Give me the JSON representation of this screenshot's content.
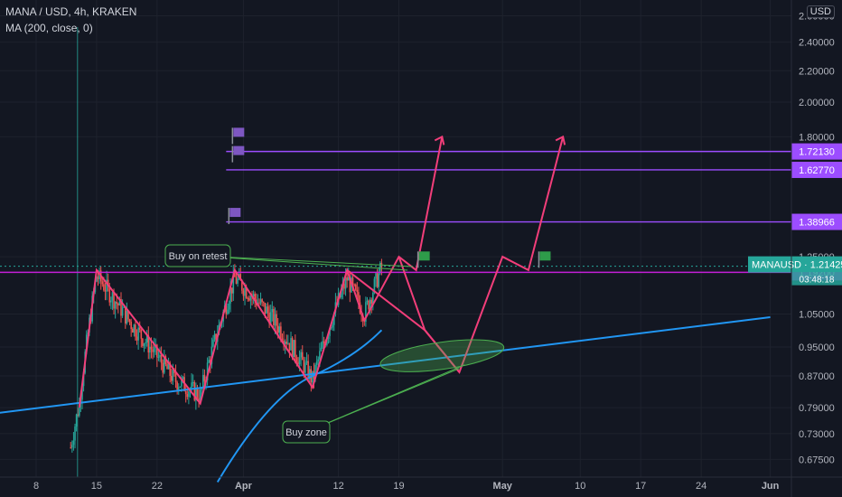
{
  "header": {
    "title": "MANA / USD, 4h, KRAKEN",
    "indicator": "MA (200, close, 0)",
    "currency": "USD"
  },
  "colors": {
    "background": "#131722",
    "grid": "#1e222d",
    "up_candle": "#26a69a",
    "down_candle": "#ef5350",
    "pattern_line": "#f23e7a",
    "support_line": "#2196f3",
    "target_line": "#9c4dff",
    "buy_line": "#c21fd6",
    "current_price": "#26a69a",
    "flag_purple": "#7e57c2",
    "flag_green": "#2e9c4a"
  },
  "chart_data": {
    "type": "candlestick",
    "title": "MANA / USD, 4h, KRAKEN",
    "y_scale": "log",
    "ylim": [
      0.66,
      2.6
    ],
    "y_ticks": [
      "2.60000",
      "2.40000",
      "2.20000",
      "2.00000",
      "1.80000",
      "1.25000",
      "1.05000",
      "0.95000",
      "0.87000",
      "0.79000",
      "0.73000",
      "0.67500"
    ],
    "y_tick_values": [
      2.6,
      2.4,
      2.2,
      2.0,
      1.8,
      1.25,
      1.05,
      0.95,
      0.87,
      0.79,
      0.73,
      0.675
    ],
    "x_ticks": [
      "8",
      "15",
      "22",
      "Apr",
      "12",
      "19",
      "May",
      "10",
      "17",
      "24",
      "Jun"
    ],
    "x_tick_dates": [
      "2022-03-08",
      "2022-03-15",
      "2022-03-22",
      "2022-04-01",
      "2022-04-12",
      "2022-04-19",
      "2022-05-01",
      "2022-05-10",
      "2022-05-17",
      "2022-05-24",
      "2022-06-01"
    ],
    "x_bold": [
      "Apr",
      "May",
      "Jun"
    ],
    "price_labels": [
      {
        "name": "target-2",
        "text": "1.72130",
        "value": 1.7213,
        "kind": "target"
      },
      {
        "name": "target-1",
        "text": "1.62770",
        "value": 1.6277,
        "kind": "target"
      },
      {
        "name": "target-0",
        "text": "1.38966",
        "value": 1.38966,
        "kind": "target"
      },
      {
        "name": "buy-level",
        "text": "1.19200",
        "value": 1.192,
        "kind": "buy"
      }
    ],
    "current": {
      "symbol": "MANAUSD",
      "price": "1.21425",
      "countdown": "03:48:18",
      "value": 1.21425
    },
    "horizontal_lines": [
      {
        "value": 1.7213,
        "from": "2022-03-30",
        "kind": "target"
      },
      {
        "value": 1.6277,
        "from": "2022-03-30",
        "kind": "target"
      },
      {
        "value": 1.38966,
        "from": "2022-03-30",
        "kind": "target"
      },
      {
        "value": 1.192,
        "from": "2022-03-01",
        "kind": "buy"
      },
      {
        "value": 1.21425,
        "from": "2022-03-01",
        "kind": "current"
      }
    ],
    "annotations": [
      {
        "text": "Buy on retest"
      },
      {
        "text": "Buy zone"
      }
    ],
    "pattern_path": [
      [
        "2022-03-13",
        0.79
      ],
      [
        "2022-03-15",
        1.2
      ],
      [
        "2022-03-27",
        0.8
      ],
      [
        "2022-03-31",
        1.2
      ],
      [
        "2022-04-09",
        0.84
      ],
      [
        "2022-04-13",
        1.2
      ],
      [
        "2022-04-15",
        1.03
      ],
      [
        "2022-04-19",
        1.25
      ],
      [
        "2022-04-21",
        1.2
      ],
      [
        "2022-04-24",
        1.8
      ],
      [
        "2022-04-22",
        1.0
      ],
      [
        "2022-04-26",
        0.88
      ],
      [
        "2022-05-01",
        1.25
      ],
      [
        "2022-05-04",
        1.2
      ],
      [
        "2022-05-08",
        1.8
      ]
    ],
    "ma200_curve": [
      [
        "2022-03-29",
        0.63
      ],
      [
        "2022-04-03",
        0.73
      ],
      [
        "2022-04-09",
        0.87
      ],
      [
        "2022-04-17",
        1.0
      ]
    ],
    "support_trendline": [
      [
        "2022-03-01",
        0.75
      ],
      [
        "2022-06-01",
        1.04
      ]
    ],
    "candles_summary": "4h OHLC candles from 2022-03-12 to 2022-04-17, range approx 0.66 to 1.20"
  }
}
